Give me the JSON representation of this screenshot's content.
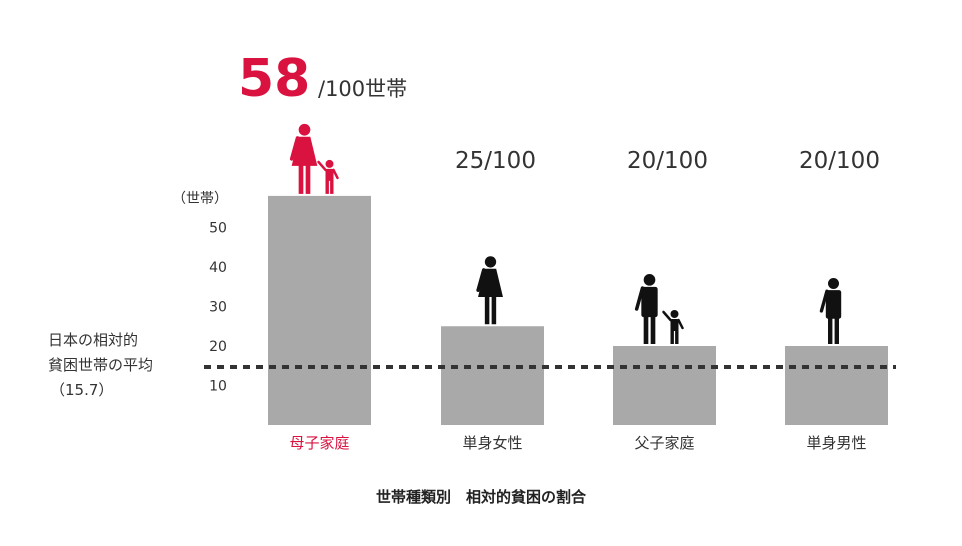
{
  "chart_data": {
    "type": "bar",
    "title": "世帯種類別　相対的貧困の割合",
    "ylabel": "（世帯）",
    "ylim": [
      0,
      60
    ],
    "yticks": [
      "10",
      "20",
      "30",
      "40",
      "50"
    ],
    "categories": [
      "母子家庭",
      "単身女性",
      "父子家庭",
      "単身男性"
    ],
    "values": [
      58,
      25,
      20,
      20
    ],
    "data_labels": [
      "58",
      "25/100",
      "20/100",
      "20/100"
    ],
    "highlight_unit": "/100世帯",
    "icons": [
      "mother-child-icon",
      "woman-icon",
      "father-child-icon",
      "man-icon"
    ],
    "reference_line": {
      "value": 15.7,
      "label_lines": [
        "日本の相対的",
        "貧困世帯の平均",
        "（15.7）"
      ],
      "style": "dashed"
    },
    "grid": false,
    "colors": {
      "bar": "#a9a9a9",
      "highlight": "#d9123f",
      "text": "#333333",
      "line": "#333333"
    }
  }
}
